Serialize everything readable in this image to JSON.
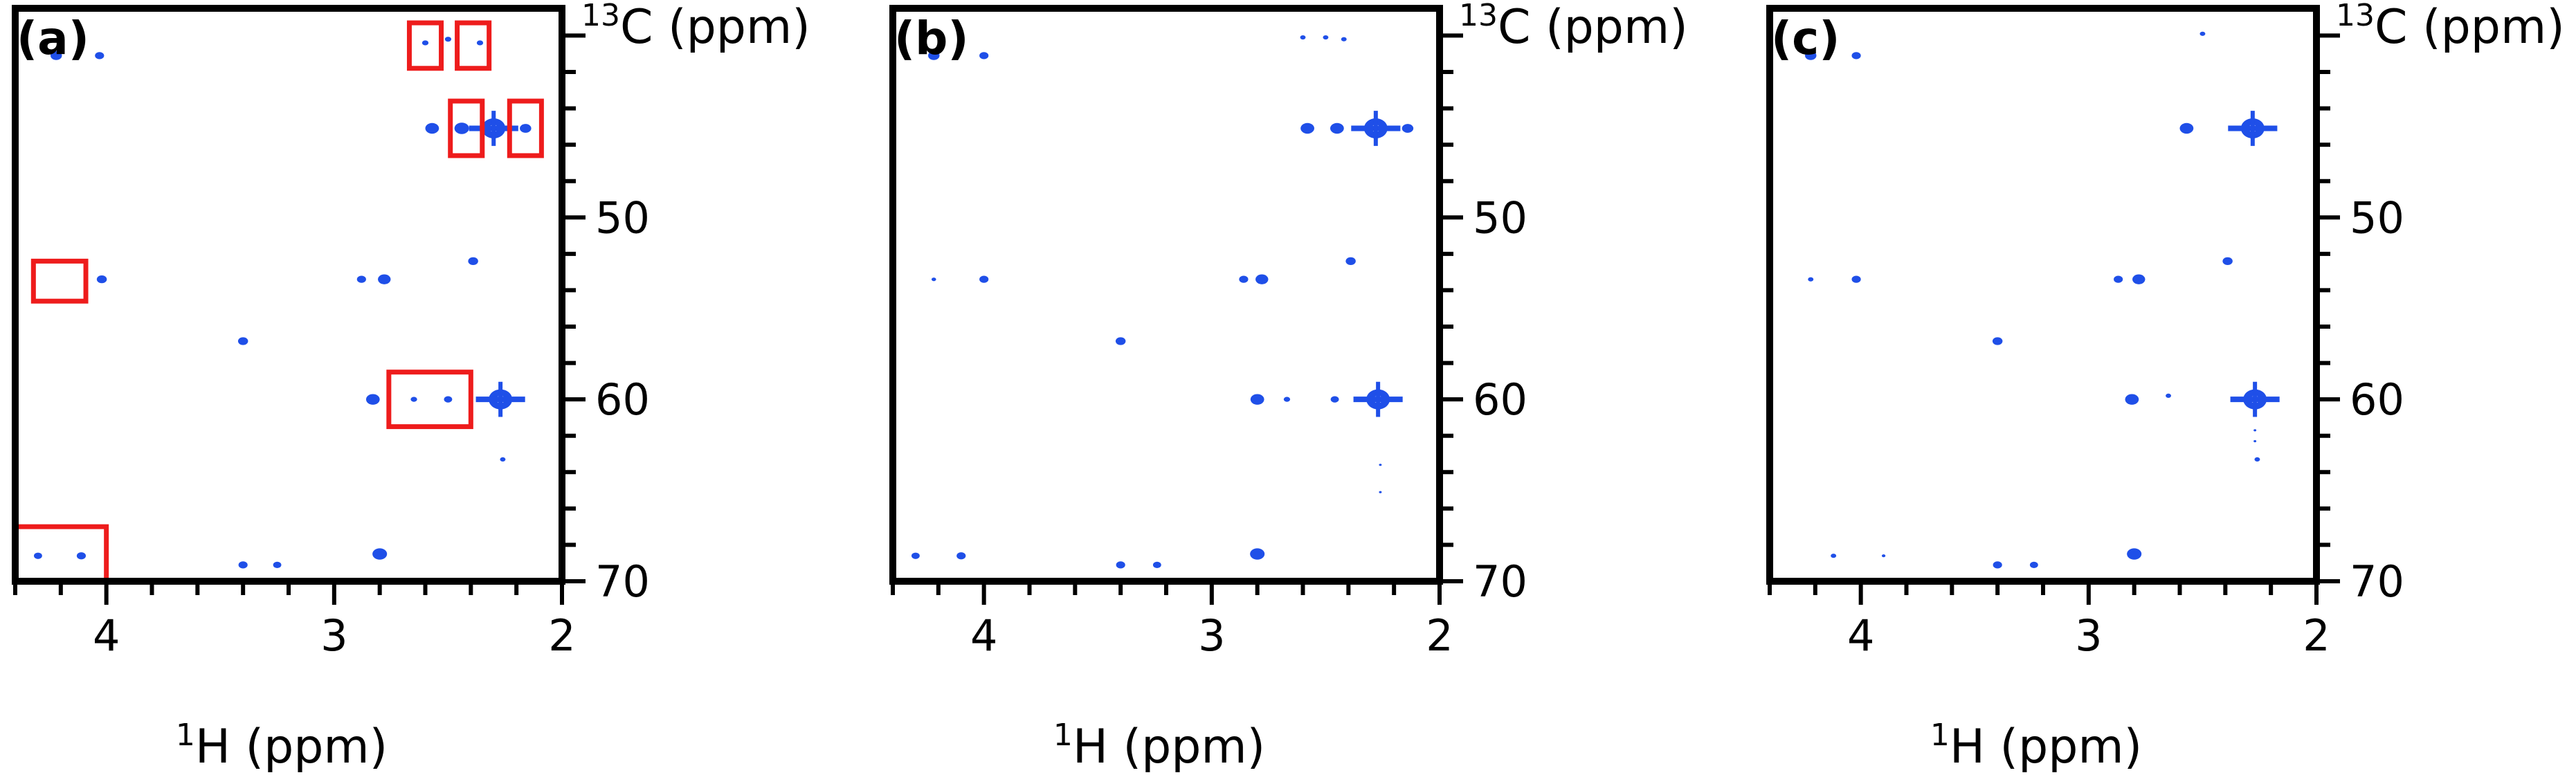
{
  "chart_data": [
    {
      "type": "scatter",
      "panel_label": "(a)",
      "xlabel_pre": "1",
      "xlabel_main": "H (ppm)",
      "ylabel_pre": "13",
      "ylabel_main": "C (ppm)",
      "xlim": [
        4.4,
        2.0
      ],
      "ylim": [
        38.5,
        70.0
      ],
      "x_ticks": [
        4,
        3,
        2
      ],
      "y_ticks": [
        50,
        60,
        70
      ],
      "peaks": [
        {
          "x": 4.22,
          "y": 41.1,
          "r": 0.025,
          "ring": false
        },
        {
          "x": 4.03,
          "y": 41.1,
          "r": 0.02,
          "ring": false
        },
        {
          "x": 2.6,
          "y": 40.4,
          "r": 0.014,
          "ring": false
        },
        {
          "x": 2.5,
          "y": 40.2,
          "r": 0.014,
          "ring": false
        },
        {
          "x": 2.36,
          "y": 40.4,
          "r": 0.014,
          "ring": false
        },
        {
          "x": 2.57,
          "y": 45.1,
          "r": 0.03,
          "ring": false
        },
        {
          "x": 2.44,
          "y": 45.1,
          "r": 0.032,
          "ring": false
        },
        {
          "x": 2.3,
          "y": 45.1,
          "r": 0.045,
          "ring": true
        },
        {
          "x": 2.16,
          "y": 45.1,
          "r": 0.025,
          "ring": false
        },
        {
          "x": 4.02,
          "y": 53.4,
          "r": 0.022,
          "ring": false
        },
        {
          "x": 2.88,
          "y": 53.4,
          "r": 0.02,
          "ring": false
        },
        {
          "x": 2.78,
          "y": 53.4,
          "r": 0.028,
          "ring": false
        },
        {
          "x": 2.39,
          "y": 52.4,
          "r": 0.022,
          "ring": false
        },
        {
          "x": 3.4,
          "y": 56.8,
          "r": 0.022,
          "ring": false
        },
        {
          "x": 2.83,
          "y": 60.0,
          "r": 0.03,
          "ring": false
        },
        {
          "x": 2.65,
          "y": 60.0,
          "r": 0.014,
          "ring": false
        },
        {
          "x": 2.5,
          "y": 60.0,
          "r": 0.018,
          "ring": false
        },
        {
          "x": 2.27,
          "y": 60.0,
          "r": 0.045,
          "ring": true
        },
        {
          "x": 2.26,
          "y": 63.3,
          "r": 0.012,
          "ring": false
        },
        {
          "x": 4.3,
          "y": 68.6,
          "r": 0.018,
          "ring": false
        },
        {
          "x": 4.11,
          "y": 68.6,
          "r": 0.02,
          "ring": false
        },
        {
          "x": 3.4,
          "y": 69.1,
          "r": 0.02,
          "ring": false
        },
        {
          "x": 3.25,
          "y": 69.1,
          "r": 0.018,
          "ring": false
        },
        {
          "x": 2.8,
          "y": 68.5,
          "r": 0.032,
          "ring": false
        }
      ],
      "markers": [
        {
          "x1": 2.67,
          "x2": 2.53,
          "y1": 39.3,
          "y2": 41.8
        },
        {
          "x1": 2.46,
          "x2": 2.32,
          "y1": 39.3,
          "y2": 41.8
        },
        {
          "x1": 2.49,
          "x2": 2.35,
          "y1": 43.6,
          "y2": 46.6
        },
        {
          "x1": 2.23,
          "x2": 2.09,
          "y1": 43.6,
          "y2": 46.6
        },
        {
          "x1": 4.32,
          "x2": 4.09,
          "y1": 52.4,
          "y2": 54.6
        },
        {
          "x1": 2.76,
          "x2": 2.4,
          "y1": 58.5,
          "y2": 61.5
        },
        {
          "x1": 4.4,
          "x2": 4.0,
          "y1": 67.0,
          "y2": 70.0
        }
      ]
    },
    {
      "type": "scatter",
      "panel_label": "(b)",
      "xlabel_pre": "1",
      "xlabel_main": "H (ppm)",
      "ylabel_pre": "13",
      "ylabel_main": "C (ppm)",
      "xlim": [
        4.4,
        2.0
      ],
      "ylim": [
        38.5,
        70.0
      ],
      "x_ticks": [
        4,
        3,
        2
      ],
      "y_ticks": [
        50,
        60,
        70
      ],
      "peaks": [
        {
          "x": 4.22,
          "y": 41.1,
          "r": 0.025,
          "ring": false
        },
        {
          "x": 4.0,
          "y": 41.1,
          "r": 0.02,
          "ring": false
        },
        {
          "x": 2.6,
          "y": 40.1,
          "r": 0.012,
          "ring": false
        },
        {
          "x": 2.5,
          "y": 40.1,
          "r": 0.012,
          "ring": false
        },
        {
          "x": 2.42,
          "y": 40.2,
          "r": 0.012,
          "ring": false
        },
        {
          "x": 2.58,
          "y": 45.1,
          "r": 0.03,
          "ring": false
        },
        {
          "x": 2.45,
          "y": 45.1,
          "r": 0.03,
          "ring": false
        },
        {
          "x": 2.28,
          "y": 45.1,
          "r": 0.045,
          "ring": true
        },
        {
          "x": 2.14,
          "y": 45.1,
          "r": 0.025,
          "ring": false
        },
        {
          "x": 4.22,
          "y": 53.4,
          "r": 0.01,
          "ring": false
        },
        {
          "x": 4.0,
          "y": 53.4,
          "r": 0.02,
          "ring": false
        },
        {
          "x": 2.86,
          "y": 53.4,
          "r": 0.02,
          "ring": false
        },
        {
          "x": 2.78,
          "y": 53.4,
          "r": 0.028,
          "ring": false
        },
        {
          "x": 2.39,
          "y": 52.4,
          "r": 0.022,
          "ring": false
        },
        {
          "x": 3.4,
          "y": 56.8,
          "r": 0.022,
          "ring": false
        },
        {
          "x": 2.8,
          "y": 60.0,
          "r": 0.03,
          "ring": false
        },
        {
          "x": 2.67,
          "y": 60.0,
          "r": 0.014,
          "ring": false
        },
        {
          "x": 2.46,
          "y": 60.0,
          "r": 0.018,
          "ring": false
        },
        {
          "x": 2.27,
          "y": 60.0,
          "r": 0.045,
          "ring": true
        },
        {
          "x": 2.26,
          "y": 63.6,
          "r": 0.006,
          "ring": false
        },
        {
          "x": 2.26,
          "y": 65.1,
          "r": 0.006,
          "ring": false
        },
        {
          "x": 4.3,
          "y": 68.6,
          "r": 0.018,
          "ring": false
        },
        {
          "x": 4.1,
          "y": 68.6,
          "r": 0.02,
          "ring": false
        },
        {
          "x": 3.4,
          "y": 69.1,
          "r": 0.02,
          "ring": false
        },
        {
          "x": 3.24,
          "y": 69.1,
          "r": 0.018,
          "ring": false
        },
        {
          "x": 2.8,
          "y": 68.5,
          "r": 0.032,
          "ring": false
        }
      ],
      "markers": []
    },
    {
      "type": "scatter",
      "panel_label": "(c)",
      "xlabel_pre": "1",
      "xlabel_main": "H (ppm)",
      "ylabel_pre": "13",
      "ylabel_main": "C (ppm)",
      "xlim": [
        4.4,
        2.0
      ],
      "ylim": [
        38.5,
        70.0
      ],
      "x_ticks": [
        4,
        3,
        2
      ],
      "y_ticks": [
        50,
        60,
        70
      ],
      "peaks": [
        {
          "x": 4.22,
          "y": 41.1,
          "r": 0.025,
          "ring": false
        },
        {
          "x": 4.02,
          "y": 41.1,
          "r": 0.02,
          "ring": false
        },
        {
          "x": 2.5,
          "y": 39.9,
          "r": 0.012,
          "ring": false
        },
        {
          "x": 2.57,
          "y": 45.1,
          "r": 0.03,
          "ring": false
        },
        {
          "x": 2.28,
          "y": 45.1,
          "r": 0.045,
          "ring": true
        },
        {
          "x": 4.22,
          "y": 53.4,
          "r": 0.012,
          "ring": false
        },
        {
          "x": 4.02,
          "y": 53.4,
          "r": 0.02,
          "ring": false
        },
        {
          "x": 2.87,
          "y": 53.4,
          "r": 0.02,
          "ring": false
        },
        {
          "x": 2.78,
          "y": 53.4,
          "r": 0.028,
          "ring": false
        },
        {
          "x": 2.39,
          "y": 52.4,
          "r": 0.022,
          "ring": false
        },
        {
          "x": 3.4,
          "y": 56.8,
          "r": 0.022,
          "ring": false
        },
        {
          "x": 2.81,
          "y": 60.0,
          "r": 0.03,
          "ring": false
        },
        {
          "x": 2.65,
          "y": 59.8,
          "r": 0.012,
          "ring": false
        },
        {
          "x": 2.27,
          "y": 60.0,
          "r": 0.045,
          "ring": true
        },
        {
          "x": 2.27,
          "y": 61.7,
          "r": 0.006,
          "ring": false
        },
        {
          "x": 2.27,
          "y": 62.3,
          "r": 0.006,
          "ring": false
        },
        {
          "x": 2.26,
          "y": 63.3,
          "r": 0.012,
          "ring": false
        },
        {
          "x": 4.12,
          "y": 68.6,
          "r": 0.012,
          "ring": false
        },
        {
          "x": 3.9,
          "y": 68.6,
          "r": 0.008,
          "ring": false
        },
        {
          "x": 3.4,
          "y": 69.1,
          "r": 0.02,
          "ring": false
        },
        {
          "x": 3.24,
          "y": 69.1,
          "r": 0.018,
          "ring": false
        },
        {
          "x": 2.8,
          "y": 68.5,
          "r": 0.032,
          "ring": false
        }
      ],
      "markers": []
    }
  ]
}
